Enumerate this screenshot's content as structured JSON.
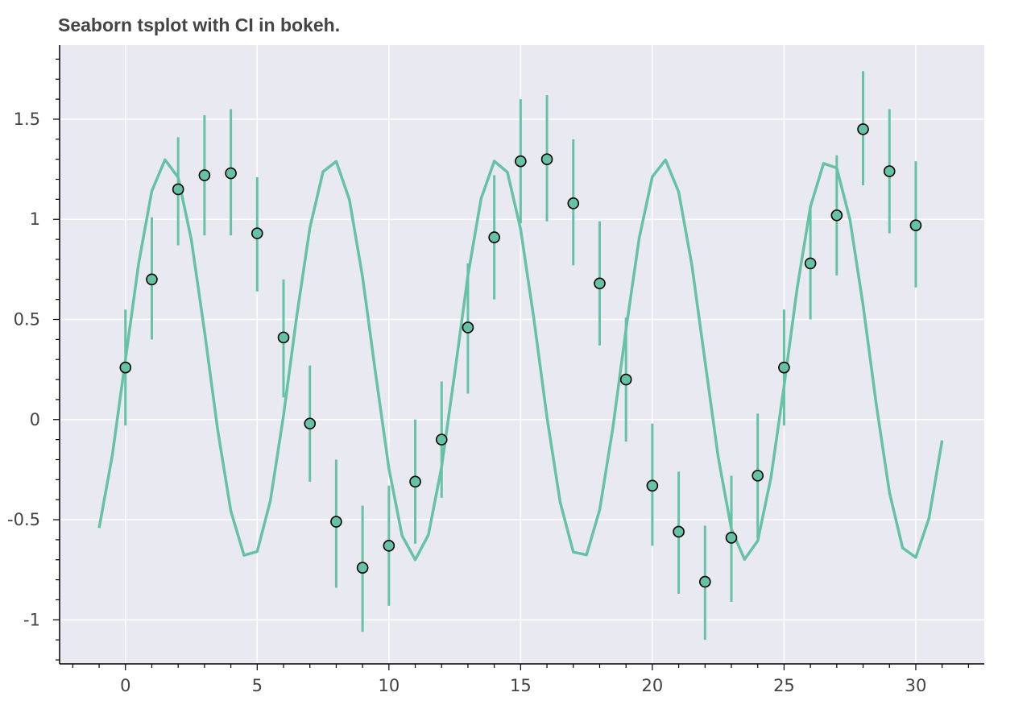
{
  "colors": {
    "plot_background": "#e9e9f1",
    "grid": "#ffffff",
    "series": "#66c2a5",
    "marker_outline": "#000000",
    "text": "#444444"
  },
  "chart_data": {
    "type": "line",
    "title": "Seaborn tsplot with CI in bokeh.",
    "xlabel": "",
    "ylabel": "",
    "xlim": [
      -2.5,
      32.6
    ],
    "ylim": [
      -1.22,
      1.87
    ],
    "x_ticks": [
      0,
      5,
      10,
      15,
      20,
      25,
      30
    ],
    "x_tick_labels": [
      "0",
      "5",
      "10",
      "15",
      "20",
      "25",
      "30"
    ],
    "y_ticks": [
      -1,
      -0.5,
      0,
      0.5,
      1,
      1.5
    ],
    "y_tick_labels": [
      "-1",
      "-0.5",
      "0",
      "0.5",
      "1",
      "1.5"
    ],
    "grid": true,
    "legend": "none",
    "series": [
      {
        "kind": "mean-curve",
        "function": "0.3 + sin(x)",
        "x_range": [
          -1,
          31
        ],
        "sample_step": 0.5
      },
      {
        "kind": "points-with-ci",
        "x": [
          0,
          1,
          2,
          3,
          4,
          5,
          6,
          7,
          8,
          9,
          10,
          11,
          12,
          13,
          14,
          15,
          16,
          17,
          18,
          19,
          20,
          21,
          22,
          23,
          24,
          25,
          26,
          27,
          28,
          29,
          30
        ],
        "y": [
          0.26,
          0.7,
          1.15,
          1.22,
          1.23,
          0.93,
          0.41,
          -0.02,
          -0.51,
          -0.74,
          -0.63,
          -0.31,
          -0.1,
          0.46,
          0.91,
          1.29,
          1.3,
          1.08,
          0.68,
          0.2,
          -0.33,
          -0.56,
          -0.81,
          -0.59,
          -0.28,
          0.26,
          0.78,
          1.02,
          1.45,
          1.24,
          0.97
        ],
        "ci_low": [
          -0.03,
          0.4,
          0.87,
          0.92,
          0.92,
          0.64,
          0.11,
          -0.31,
          -0.84,
          -1.06,
          -0.93,
          -0.62,
          -0.39,
          0.13,
          0.6,
          0.98,
          0.99,
          0.77,
          0.37,
          -0.11,
          -0.63,
          -0.87,
          -1.1,
          -0.91,
          -0.59,
          -0.03,
          0.5,
          0.72,
          1.17,
          0.93,
          0.66
        ],
        "ci_high": [
          0.55,
          1.01,
          1.41,
          1.52,
          1.55,
          1.21,
          0.7,
          0.27,
          -0.2,
          -0.43,
          -0.33,
          0.0,
          0.19,
          0.78,
          1.22,
          1.6,
          1.62,
          1.4,
          0.99,
          0.51,
          -0.02,
          -0.26,
          -0.53,
          -0.28,
          0.03,
          0.55,
          1.07,
          1.32,
          1.74,
          1.55,
          1.29
        ]
      }
    ]
  }
}
